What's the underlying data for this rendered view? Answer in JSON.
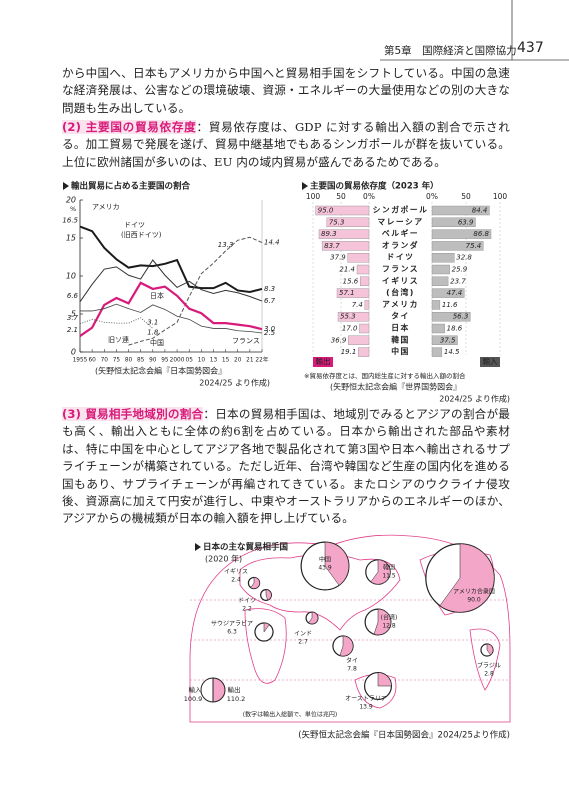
{
  "header": {
    "chapter": "第5章　国際経済と国際協力",
    "page": "437"
  },
  "paragraphs": [
    "から中国へ、日本もアメリカから中国へと貿易相手国をシフトしている。中国の急速な経済発展は、公害などの環境破壊、資源・エネルギーの大量使用などの別の大きな問題も生み出している。"
  ],
  "sections": [
    {
      "heading": "(2) 主要国の貿易依存度",
      "text": "：貿易依存度は、GDP に対する輸出入額の割合で示される。加工貿易で発展を遂げ、貿易中継基地でもあるシンガポールが群を抜いている。上位に欧州諸国が多いのは、EU 内の域内貿易が盛んであるためである。"
    },
    {
      "heading": "(3) 貿易相手地域別の割合",
      "text": "：日本の貿易相手国は、地域別でみるとアジアの割合が最も高く、輸出入ともに全体の約6割を占めている。日本から輸出された部品や素材は、特に中国を中心としてアジア各地で製品化されて第3国や日本へ輸出されるサプライチェーンが構築されている。ただし近年、台湾や韓国など生産の国内化を進める国もあり、サプライチェーンが再編されてきている。またロシアのウクライナ侵攻後、資源高に加えて円安が進行し、中東やオーストラリアからのエネルギーのほか、アジアからの機械類が日本の輸入額を押し上げている。"
    }
  ],
  "chart_data": [
    {
      "type": "line",
      "title": "輸出貿易に占める主要国の割合",
      "y_unit": "%",
      "categories": [
        "1955",
        "60",
        "70",
        "75",
        "80",
        "85",
        "90",
        "95",
        "2000",
        "05",
        "10",
        "13",
        "15",
        "20",
        "21",
        "22年"
      ],
      "ylim": [
        0,
        20
      ],
      "yticks": [
        0,
        5,
        10,
        15,
        20
      ],
      "series": [
        {
          "name": "アメリカ",
          "color": "#1a1a1a",
          "width": 2,
          "values": [
            16.5,
            15.9,
            13.7,
            12.2,
            11.1,
            11.4,
            11.3,
            11.6,
            12.1,
            8.6,
            8.4,
            8.4,
            9.1,
            8.1,
            7.9,
            8.3
          ],
          "value_labels": [
            "16.5",
            null,
            null,
            null,
            null,
            null,
            null,
            null,
            null,
            null,
            null,
            null,
            null,
            null,
            null,
            "8.3"
          ]
        },
        {
          "name": "ドイツ",
          "name_note": "(旧西ドイツ)",
          "color": "#333333",
          "width": 1,
          "values": [
            6.6,
            8.9,
            10.9,
            11.2,
            10.1,
            9.6,
            12.1,
            10.1,
            8.5,
            9.3,
            8.2,
            7.7,
            8.1,
            7.8,
            7.3,
            6.7
          ],
          "value_labels": [
            "6.6",
            null,
            null,
            null,
            null,
            null,
            null,
            null,
            null,
            null,
            null,
            null,
            null,
            null,
            null,
            "6.7"
          ]
        },
        {
          "name": "中国",
          "color": "#555555",
          "width": 1,
          "dash": "dashed",
          "values": [
            null,
            null,
            null,
            null,
            0.9,
            1.4,
            1.8,
            2.9,
            3.9,
            7.3,
            10.3,
            11.7,
            13.3,
            14.7,
            15.1,
            14.4
          ],
          "value_labels": [
            null,
            null,
            null,
            null,
            null,
            null,
            "1.8",
            null,
            null,
            null,
            null,
            null,
            "13.3",
            null,
            null,
            "14.4"
          ]
        },
        {
          "name": "日本",
          "color": "#d81b7a",
          "width": 2.2,
          "values": [
            2.1,
            3.2,
            6.2,
            7.1,
            6.4,
            9.1,
            8.3,
            8.6,
            7.4,
            5.7,
            5.1,
            3.8,
            3.8,
            3.6,
            3.4,
            3.0
          ],
          "value_labels": [
            "2.1",
            null,
            null,
            null,
            null,
            null,
            null,
            null,
            null,
            null,
            null,
            null,
            null,
            null,
            null,
            "3.0"
          ]
        },
        {
          "name": "フランス",
          "color": "#444444",
          "width": 0.8,
          "values": [
            5.4,
            5.4,
            5.7,
            6.3,
            5.7,
            5.2,
            6.2,
            5.6,
            4.7,
            4.3,
            3.4,
            3.1,
            3.1,
            2.8,
            2.7,
            2.5
          ],
          "value_labels": [
            null,
            null,
            null,
            null,
            null,
            null,
            null,
            null,
            null,
            null,
            null,
            null,
            null,
            null,
            null,
            "2.5"
          ]
        },
        {
          "name": "旧ソ連",
          "color": "#444444",
          "width": 0.8,
          "dash": "dotted",
          "values": [
            3.7,
            4.3,
            3.9,
            3.8,
            3.8,
            4.5,
            3.1,
            null,
            null,
            null,
            null,
            null,
            null,
            null,
            null,
            null
          ],
          "value_labels": [
            "3.7",
            null,
            null,
            null,
            null,
            null,
            "3.1",
            null,
            null,
            null,
            null,
            null,
            null,
            null,
            null,
            null
          ]
        }
      ],
      "source": [
        "(矢野恒太記念会編『日本国勢図会』",
        "2024/25 より作成)"
      ]
    },
    {
      "type": "butterfly-bar",
      "title": "主要国の貿易依存度（2023 年）",
      "categories": [
        "シンガポール",
        "マレーシア",
        "ベルギー",
        "オランダ",
        "ドイツ",
        "フランス",
        "イギリス",
        "(台湾)",
        "アメリカ",
        "タイ",
        "日本",
        "韓国",
        "中国"
      ],
      "xlim": [
        0,
        100
      ],
      "xticks": [
        {
          "value": 0,
          "label": "0%"
        },
        50,
        100
      ],
      "series": [
        {
          "name": "輸出",
          "color": "#f6c4d9",
          "values": [
            95.0,
            75.3,
            89.3,
            83.7,
            37.9,
            21.4,
            15.6,
            57.1,
            7.4,
            55.3,
            17.0,
            36.9,
            19.1
          ],
          "value_labels": [
            "95.0",
            "75.3",
            "89.3",
            "83.7",
            "37.9",
            "21.4",
            "15.6",
            "57.1",
            "7.4",
            "55.3",
            "17.0",
            "36.9",
            "19.1"
          ]
        },
        {
          "name": "輸入",
          "color": "#bdbdbd",
          "values": [
            84.4,
            63.9,
            86.8,
            75.4,
            32.8,
            25.9,
            23.7,
            47.4,
            11.6,
            56.3,
            18.6,
            37.5,
            14.5
          ],
          "value_labels": [
            "84.4",
            "63.9",
            "86.8",
            "75.4",
            "32.8",
            "25.9",
            "23.7",
            "47.4",
            "11.6",
            "56.3",
            "18.6",
            "37.5",
            "14.5"
          ]
        }
      ],
      "note": "※貿易依存度とは、国内総生産に対する輸出入額の割合",
      "source": [
        "(矢野恒太記念会編『世界国勢図会』",
        "2024/25 より作成)"
      ]
    },
    {
      "type": "pie-map",
      "title": "日本の主な貿易相手国",
      "subtitle": "(2020 年)",
      "note": "(数字は輸出入総額で、単位は兆円)",
      "points": [
        {
          "name": "イギリス",
          "value": 2.4,
          "export_share_pct": 60
        },
        {
          "name": "ドイツ",
          "value": 2.2,
          "export_share_pct": 45
        },
        {
          "name": "サウジアラビア",
          "value": 6.3,
          "export_share_pct": 10
        },
        {
          "name": "インド",
          "value": 2.7,
          "export_share_pct": 60
        },
        {
          "name": "中国",
          "value": 43.9,
          "export_share_pct": 40
        },
        {
          "name": "韓国",
          "value": 11.5,
          "export_share_pct": 60
        },
        {
          "name": "(台湾)",
          "value": 12.8,
          "export_share_pct": 55
        },
        {
          "name": "タイ",
          "value": 7.8,
          "export_share_pct": 55
        },
        {
          "name": "オーストラリア",
          "value": 13.9,
          "export_share_pct": 25
        },
        {
          "name": "アメリカ合衆国",
          "value": 90.0,
          "value_label": "90.0",
          "export_share_pct": 60
        },
        {
          "name": "ブラジル",
          "value": 2.8,
          "export_share_pct": 40
        }
      ],
      "legend": {
        "import_label": "輸入",
        "import_value": 100.9,
        "export_label": "輸出",
        "export_value": 110.2
      },
      "source": "(矢野恒太記念会編『日本国勢図会』2024/25より作成)"
    }
  ]
}
